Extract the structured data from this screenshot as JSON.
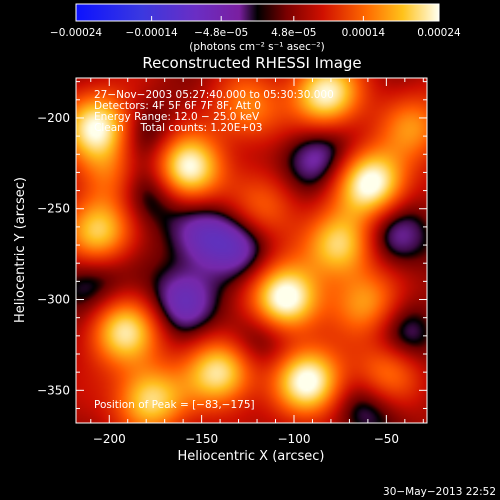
{
  "chart_data": {
    "type": "heatmap",
    "title": "Reconstructed RHESSI Image",
    "xlabel": "Heliocentric X (arcsec)",
    "ylabel": "Heliocentric Y (arcsec)",
    "xlim": [
      -218,
      -28
    ],
    "ylim": [
      -368,
      -178
    ],
    "x_ticks": [
      -200,
      -150,
      -100,
      -50
    ],
    "y_ticks": [
      -200,
      -250,
      -300,
      -350
    ],
    "x_tick_labels": [
      "−200",
      "−150",
      "−100",
      "−50"
    ],
    "y_tick_labels": [
      "−200",
      "−250",
      "−300",
      "−350"
    ],
    "colorbar": {
      "range": [
        -0.00024,
        0.00024
      ],
      "tick_values": [
        -0.00024,
        -0.00014,
        -4.8e-05,
        4.8e-05,
        0.00014,
        0.00024
      ],
      "tick_labels": [
        "−0.00024",
        "−0.00014",
        "−4.8e−05",
        "4.8e−05",
        "0.00014",
        "0.00024"
      ],
      "unit_label": "(photons cm⁻² s⁻¹ asec⁻²)"
    },
    "annotations": [
      "27−Nov−2003 05:27:40.000 to 05:30:30.000",
      "Detectors: 4F 5F 6F 7F 8F, Att 0",
      "Energy Range: 12.0 − 25.0 keV",
      "Clean     Total counts: 1.20E+03"
    ],
    "peak_label": "Position of Peak = [−83,−175]",
    "peak": [
      -83,
      -175
    ],
    "sources": [
      {
        "x": -105,
        "y": -300,
        "amp": 1.0
      },
      {
        "x": -92,
        "y": -345,
        "amp": 0.9
      },
      {
        "x": -158,
        "y": -228,
        "amp": 0.95
      },
      {
        "x": -58,
        "y": -236,
        "amp": 0.95
      },
      {
        "x": -83,
        "y": -187,
        "amp": 0.85
      },
      {
        "x": -206,
        "y": -205,
        "amp": 0.85
      },
      {
        "x": -206,
        "y": -262,
        "amp": 0.7
      },
      {
        "x": -192,
        "y": -318,
        "amp": 0.75
      },
      {
        "x": -178,
        "y": -355,
        "amp": 0.75
      },
      {
        "x": -140,
        "y": -340,
        "amp": 0.8
      },
      {
        "x": -75,
        "y": -270,
        "amp": 0.75
      },
      {
        "x": -60,
        "y": -302,
        "amp": 0.5
      },
      {
        "x": -50,
        "y": -340,
        "amp": 0.45
      },
      {
        "x": -125,
        "y": -195,
        "amp": 0.45
      },
      {
        "x": -115,
        "y": -250,
        "amp": 0.35
      },
      {
        "x": -198,
        "y": -232,
        "amp": 0.4
      },
      {
        "x": -35,
        "y": -205,
        "amp": 0.45
      },
      {
        "x": -130,
        "y": -270,
        "amp": -0.35
      },
      {
        "x": -150,
        "y": -265,
        "amp": -0.4
      },
      {
        "x": -180,
        "y": -240,
        "amp": -0.45
      },
      {
        "x": -88,
        "y": -222,
        "amp": -0.4
      },
      {
        "x": -160,
        "y": -300,
        "amp": -0.45
      },
      {
        "x": -45,
        "y": -265,
        "amp": -0.4
      },
      {
        "x": -120,
        "y": -320,
        "amp": -0.3
      },
      {
        "x": -60,
        "y": -360,
        "amp": -0.3
      },
      {
        "x": -210,
        "y": -290,
        "amp": -0.3
      },
      {
        "x": -40,
        "y": -320,
        "amp": -0.3
      },
      {
        "x": -180,
        "y": -210,
        "amp": -0.25
      }
    ]
  },
  "footer": {
    "date": "30−May−2013 22:52"
  }
}
